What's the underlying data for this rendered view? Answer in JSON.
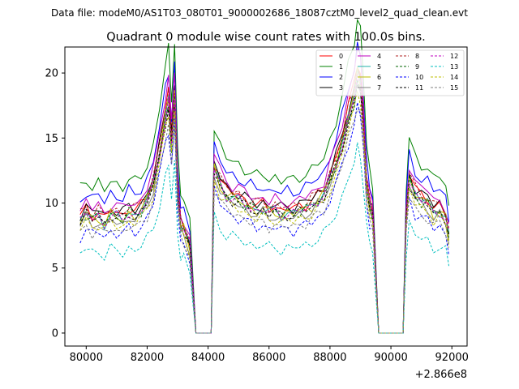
{
  "chart_data": {
    "type": "line",
    "suptitle": "Data file: modeM0/AS1T03_080T01_9000002686_18087cztM0_level2_quad_clean.evt",
    "title": "Quadrant 0 module wise count rates with 100.0s bins.",
    "xlabel": "",
    "ylabel": "",
    "offset_label": "+2.866e8",
    "xlim": [
      79300,
      92500
    ],
    "ylim": [
      -1,
      22
    ],
    "x_ticks": [
      80000,
      82000,
      84000,
      86000,
      88000,
      90000,
      92000
    ],
    "y_ticks": [
      0,
      5,
      10,
      15,
      20
    ],
    "grid": false,
    "legend": {
      "placement": "top-right",
      "columns": 4
    },
    "x": [
      79800,
      80000,
      80200,
      80400,
      80600,
      80800,
      81000,
      81200,
      81400,
      81600,
      81800,
      82000,
      82200,
      82400,
      82600,
      82700,
      82800,
      82900,
      83000,
      83100,
      83200,
      83400,
      83600,
      83800,
      84000,
      84100,
      84200,
      84400,
      84600,
      84800,
      85000,
      85200,
      85400,
      85600,
      85800,
      86000,
      86200,
      86400,
      86600,
      86800,
      87000,
      87200,
      87400,
      87600,
      87800,
      88000,
      88200,
      88400,
      88600,
      88800,
      88900,
      89000,
      89100,
      89200,
      89300,
      89400,
      89600,
      89800,
      90000,
      90200,
      90400,
      90500,
      90600,
      90800,
      91000,
      91200,
      91400,
      91600,
      91800,
      91900
    ],
    "profile": [
      0.2,
      0.28,
      0.22,
      0.25,
      0.18,
      0.26,
      0.24,
      0.22,
      0.28,
      0.25,
      0.3,
      0.4,
      0.55,
      0.85,
      1.2,
      1.35,
      0.95,
      1.4,
      0.5,
      0.15,
      0.12,
      -0.05,
      -2,
      -2,
      -2,
      -2,
      0.7,
      0.55,
      0.45,
      0.42,
      0.4,
      0.36,
      0.33,
      0.3,
      0.32,
      0.28,
      0.3,
      0.26,
      0.28,
      0.27,
      0.3,
      0.32,
      0.35,
      0.4,
      0.45,
      0.6,
      0.75,
      0.95,
      1.2,
      1.4,
      1.6,
      1.5,
      1.1,
      0.55,
      0.35,
      0.25,
      -2,
      -2,
      -2,
      -2,
      -2,
      0.2,
      0.6,
      0.45,
      0.4,
      0.38,
      0.28,
      0.3,
      0.22,
      0.05
    ],
    "series": [
      {
        "name": "0",
        "color": "#ff0000",
        "dash": false,
        "base": 7.2,
        "amp": 9.5
      },
      {
        "name": "1",
        "color": "#008000",
        "dash": false,
        "base": 9.2,
        "amp": 10.5
      },
      {
        "name": "2",
        "color": "#0000ff",
        "dash": false,
        "base": 8.5,
        "amp": 9.5
      },
      {
        "name": "3",
        "color": "#000000",
        "dash": false,
        "base": 7.5,
        "amp": 9.0
      },
      {
        "name": "4",
        "color": "#bf00bf",
        "dash": false,
        "base": 7.6,
        "amp": 10.0
      },
      {
        "name": "5",
        "color": "#20b2aa",
        "dash": false,
        "base": 7.0,
        "amp": 9.0
      },
      {
        "name": "6",
        "color": "#bfbf00",
        "dash": false,
        "base": 6.9,
        "amp": 9.2
      },
      {
        "name": "7",
        "color": "#7f7f7f",
        "dash": false,
        "base": 6.6,
        "amp": 9.0
      },
      {
        "name": "8",
        "color": "#b22222",
        "dash": true,
        "base": 7.5,
        "amp": 9.0
      },
      {
        "name": "9",
        "color": "#006400",
        "dash": true,
        "base": 7.1,
        "amp": 8.5
      },
      {
        "name": "10",
        "color": "#0000ff",
        "dash": true,
        "base": 6.0,
        "amp": 8.0
      },
      {
        "name": "11",
        "color": "#000000",
        "dash": true,
        "base": 7.0,
        "amp": 8.5
      },
      {
        "name": "12",
        "color": "#bf00bf",
        "dash": true,
        "base": 7.0,
        "amp": 8.8
      },
      {
        "name": "13",
        "color": "#00bfbf",
        "dash": true,
        "base": 4.9,
        "amp": 6.5
      },
      {
        "name": "14",
        "color": "#bfbf00",
        "dash": true,
        "base": 6.5,
        "amp": 8.5
      },
      {
        "name": "15",
        "color": "#7f7f7f",
        "dash": true,
        "base": 6.2,
        "amp": 8.0
      }
    ]
  }
}
